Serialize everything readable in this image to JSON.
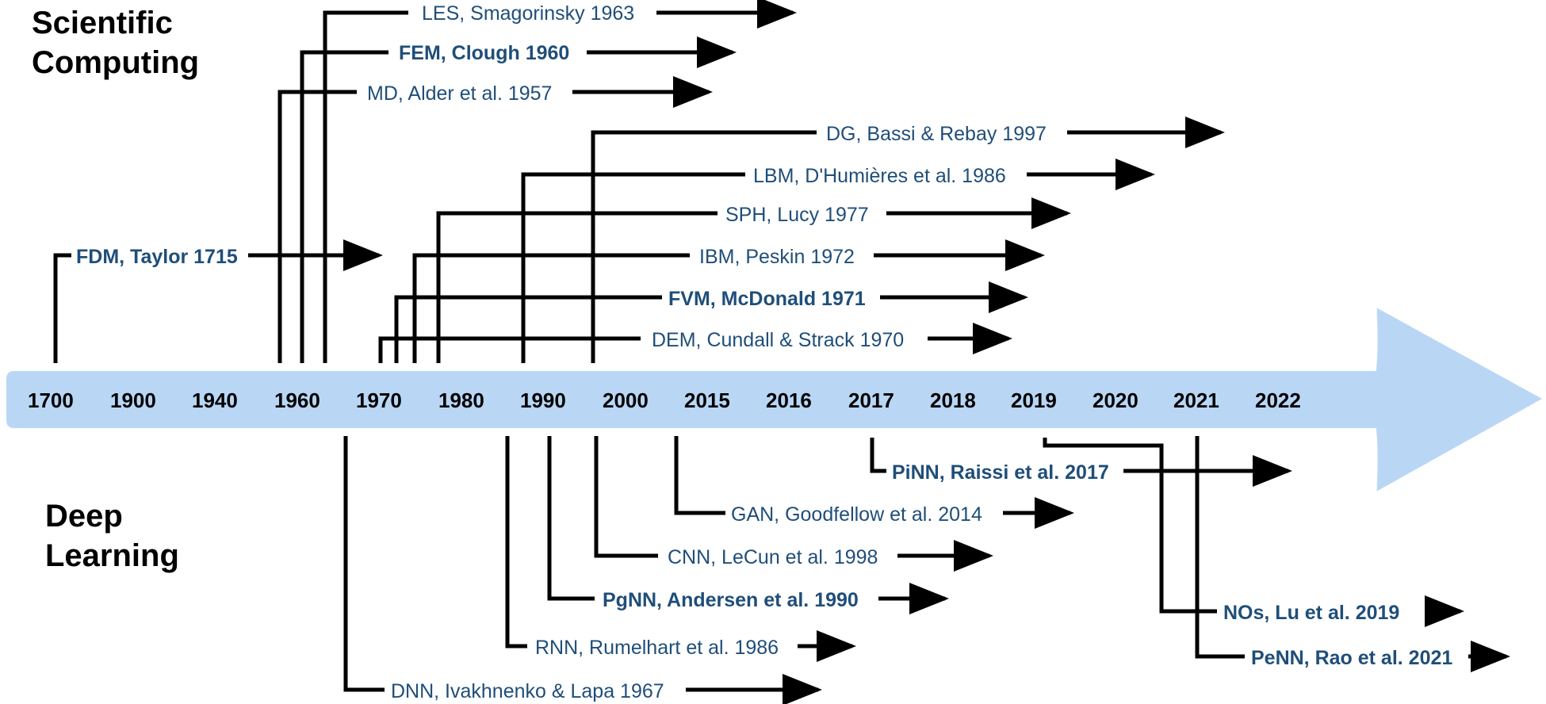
{
  "sections": {
    "top_line1": "Scientific",
    "top_line2": "Computing",
    "bottom_line1": "Deep",
    "bottom_line2": "Learning"
  },
  "timeline": {
    "color": "#b9d7f5",
    "years": [
      "1700",
      "1900",
      "1940",
      "1960",
      "1970",
      "1980",
      "1990",
      "2000",
      "2015",
      "2016",
      "2017",
      "2018",
      "2019",
      "2020",
      "2021",
      "2022"
    ]
  },
  "scientific_computing": [
    {
      "id": "les",
      "label": "LES, Smagorinsky 1963",
      "bold": false
    },
    {
      "id": "fem",
      "label": "FEM, Clough 1960",
      "bold": true
    },
    {
      "id": "md",
      "label": "MD, Alder et al. 1957",
      "bold": false
    },
    {
      "id": "dg",
      "label": "DG, Bassi & Rebay 1997",
      "bold": false
    },
    {
      "id": "lbm",
      "label": "LBM, D'Humières et al. 1986",
      "bold": false
    },
    {
      "id": "sph",
      "label": "SPH, Lucy 1977",
      "bold": false
    },
    {
      "id": "fdm",
      "label": "FDM, Taylor 1715",
      "bold": true
    },
    {
      "id": "ibm",
      "label": "IBM, Peskin 1972",
      "bold": false
    },
    {
      "id": "fvm",
      "label": "FVM, McDonald 1971",
      "bold": true
    },
    {
      "id": "dem",
      "label": "DEM, Cundall & Strack 1970",
      "bold": false
    }
  ],
  "deep_learning": [
    {
      "id": "pinn",
      "label": "PiNN, Raissi et al. 2017",
      "bold": true
    },
    {
      "id": "gan",
      "label": "GAN, Goodfellow et al. 2014",
      "bold": false
    },
    {
      "id": "cnn",
      "label": "CNN, LeCun et al. 1998",
      "bold": false
    },
    {
      "id": "pgnn",
      "label": "PgNN, Andersen et al. 1990",
      "bold": true
    },
    {
      "id": "nos",
      "label": "NOs, Lu et al. 2019",
      "bold": true
    },
    {
      "id": "rnn",
      "label": "RNN, Rumelhart et al. 1986",
      "bold": false
    },
    {
      "id": "penn",
      "label": "PeNN, Rao et al. 2021",
      "bold": true
    },
    {
      "id": "dnn",
      "label": "DNN, Ivakhnenko & Lapa 1967",
      "bold": false
    }
  ]
}
